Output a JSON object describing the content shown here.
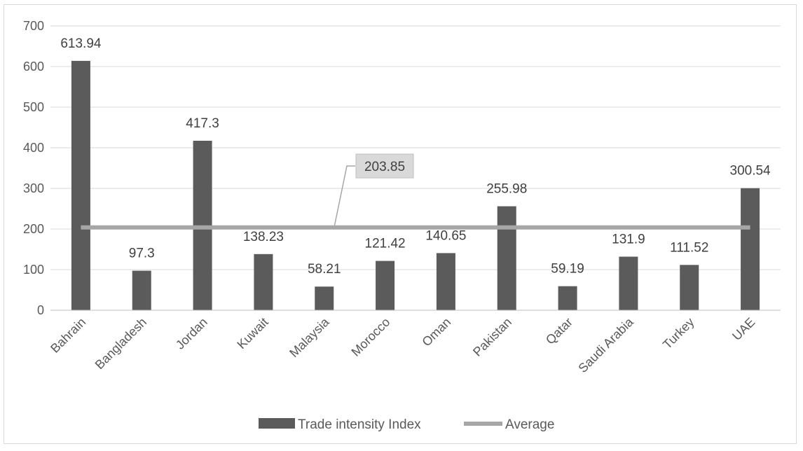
{
  "chart_data": {
    "type": "bar",
    "title": "",
    "xlabel": "",
    "ylabel": "",
    "ylim": [
      0,
      700
    ],
    "yticks": [
      0,
      100,
      200,
      300,
      400,
      500,
      600,
      700
    ],
    "grid": true,
    "legend_position": "bottom",
    "categories": [
      "Bahrain",
      "Bangladesh",
      "Jordan",
      "Kuwait",
      "Malaysia",
      "Morocco",
      "Oman",
      "Pakistan",
      "Qatar",
      "Saudi Arabia",
      "Turkey",
      "UAE"
    ],
    "series": [
      {
        "name": "Trade intensity Index",
        "kind": "bar",
        "color": "#5b5b5b",
        "values": [
          613.94,
          97.3,
          417.3,
          138.23,
          58.21,
          121.42,
          140.65,
          255.98,
          59.19,
          131.9,
          111.52,
          300.54
        ],
        "labels": [
          "613.94",
          "97.3",
          "417.3",
          "138.23",
          "58.21",
          "121.42",
          "140.65",
          "255.98",
          "59.19",
          "131.9",
          "111.52",
          "300.54"
        ]
      },
      {
        "name": "Average",
        "kind": "line",
        "color": "#a6a6a6",
        "value": 203.85,
        "label": "203.85"
      }
    ]
  }
}
